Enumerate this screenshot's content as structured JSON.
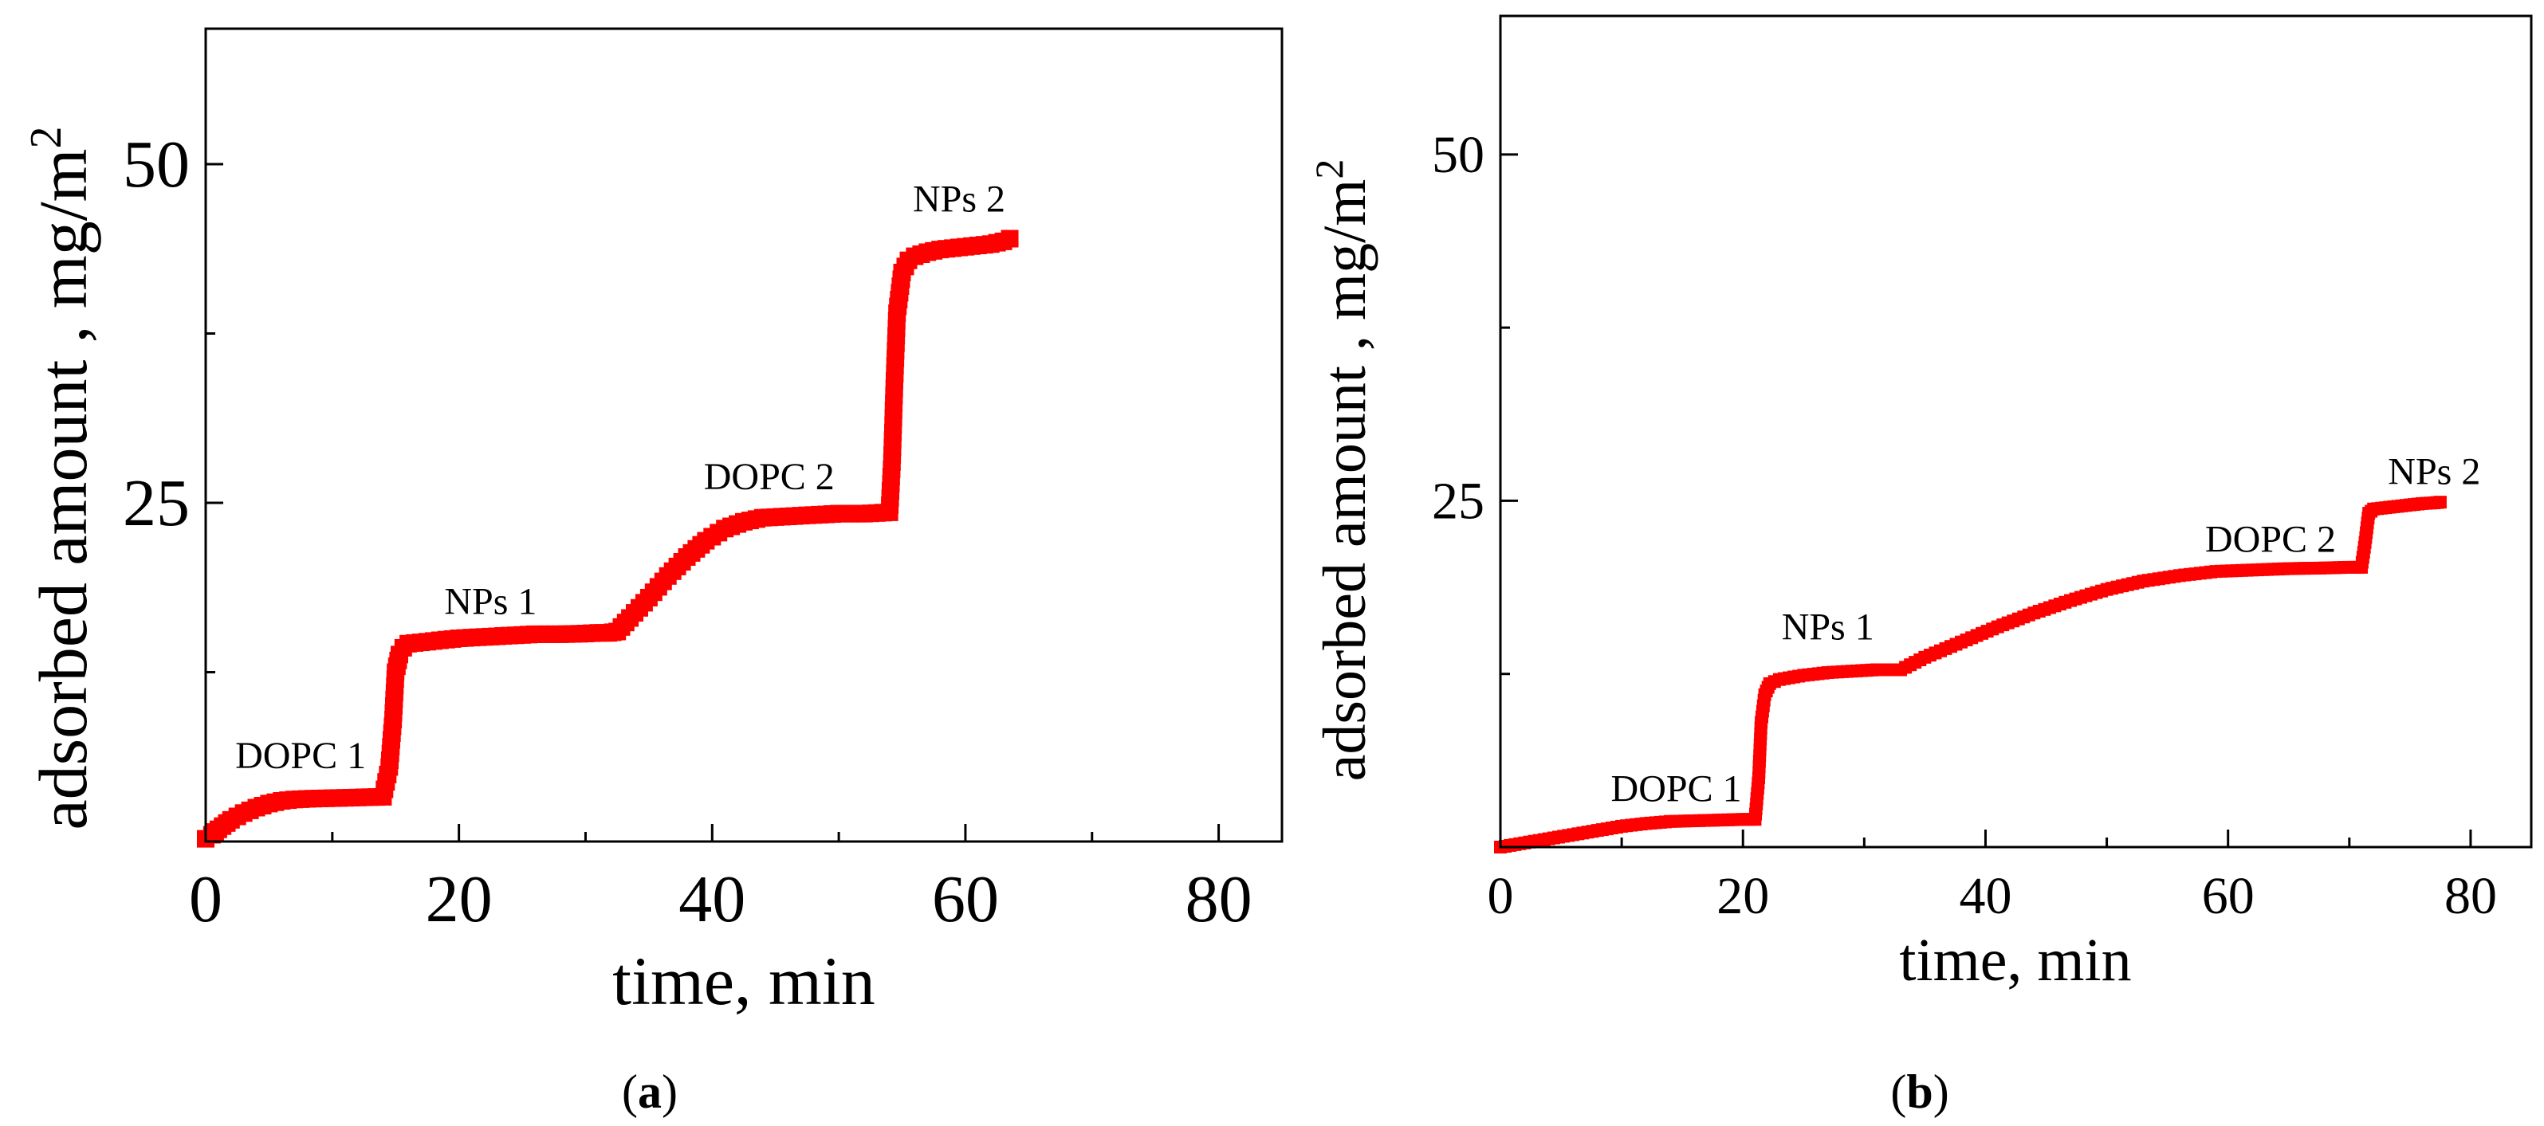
{
  "chart_data": [
    {
      "id": "a",
      "type": "scatter",
      "caption": {
        "open": "(",
        "letter": "a",
        "close": ")"
      },
      "xlabel": "time, min",
      "ylabel": "adsorbed amount , mg/m",
      "ylabel_superscript": "2",
      "xlim": [
        0,
        85
      ],
      "ylim": [
        0,
        60
      ],
      "x_ticks": [
        0,
        20,
        40,
        60,
        80
      ],
      "x_tick_labels": [
        "0",
        "20",
        "40",
        "60",
        "80"
      ],
      "x_minor_ticks": [
        10,
        30,
        50,
        70
      ],
      "y_ticks": [
        25,
        50
      ],
      "y_tick_labels": [
        "25",
        "50"
      ],
      "y_minor_ticks": [
        12.5,
        37.5
      ],
      "marker": "filled-square",
      "color": "#ff0000",
      "series": [
        {
          "name": "adsorbed amount",
          "x": [
            0,
            0.5,
            1,
            2,
            3,
            4,
            5,
            6,
            7,
            8,
            10,
            12,
            14,
            14.5,
            14.8,
            15,
            15.3,
            15.6,
            16,
            18,
            20,
            22,
            24,
            26,
            28,
            30,
            31,
            31.8,
            32.5,
            33.5,
            35,
            36.5,
            38,
            39.5,
            41,
            42.5,
            44,
            46,
            48,
            50,
            52,
            54,
            54.2,
            54.4,
            54.6,
            55,
            55.5,
            56,
            57,
            58,
            59,
            60,
            61,
            62,
            63,
            63.5
          ],
          "y": [
            0.2,
            0.5,
            0.9,
            1.6,
            2.1,
            2.5,
            2.8,
            3.0,
            3.1,
            3.15,
            3.2,
            3.25,
            3.3,
            5.5,
            9,
            12.5,
            13.8,
            14.3,
            14.6,
            14.8,
            15.0,
            15.1,
            15.2,
            15.3,
            15.3,
            15.35,
            15.4,
            15.4,
            15.5,
            16.5,
            18,
            19.6,
            21,
            22.2,
            23.1,
            23.6,
            23.9,
            24.0,
            24.1,
            24.2,
            24.2,
            24.3,
            28,
            34,
            39,
            42,
            42.9,
            43.2,
            43.5,
            43.7,
            43.8,
            43.9,
            44.0,
            44.1,
            44.3,
            44.5
          ]
        }
      ],
      "annotations": [
        {
          "text": "DOPC 1",
          "x": 7.5,
          "y": 5.4
        },
        {
          "text": "NPs 1",
          "x": 22.5,
          "y": 16.8
        },
        {
          "text": "DOPC 2",
          "x": 44.5,
          "y": 26.0
        },
        {
          "text": "NPs 2",
          "x": 59.5,
          "y": 46.5
        }
      ]
    },
    {
      "id": "b",
      "type": "scatter",
      "caption": {
        "open": "(",
        "letter": "b",
        "close": ")"
      },
      "xlabel": "time, min",
      "ylabel": "adsorbed amount , mg/m",
      "ylabel_superscript": "2",
      "xlim": [
        0,
        85
      ],
      "ylim": [
        0,
        60
      ],
      "x_ticks": [
        0,
        20,
        40,
        60,
        80
      ],
      "x_tick_labels": [
        "0",
        "20",
        "40",
        "60",
        "80"
      ],
      "x_minor_ticks": [
        10,
        30,
        50,
        70
      ],
      "y_ticks": [
        25,
        50
      ],
      "y_tick_labels": [
        "25",
        "50"
      ],
      "y_minor_ticks": [
        12.5,
        37.5
      ],
      "marker": "filled-square",
      "color": "#ff0000",
      "series": [
        {
          "name": "adsorbed amount",
          "x": [
            0,
            2,
            4,
            6,
            8,
            10,
            12,
            14,
            16,
            18,
            20,
            21,
            21.3,
            21.5,
            21.8,
            22.2,
            23,
            25,
            27,
            29,
            31,
            33,
            35,
            38,
            41,
            44,
            47,
            50,
            53,
            56,
            59,
            62,
            65,
            68,
            70,
            71,
            71.3,
            71.6,
            72,
            73,
            74,
            75,
            76,
            77,
            77.5
          ],
          "y": [
            0,
            0.3,
            0.6,
            0.9,
            1.2,
            1.5,
            1.7,
            1.85,
            1.9,
            1.95,
            2.0,
            2.0,
            5,
            9,
            11,
            11.8,
            12.1,
            12.4,
            12.6,
            12.7,
            12.8,
            12.8,
            13.7,
            14.8,
            15.9,
            16.9,
            17.8,
            18.6,
            19.2,
            19.6,
            19.9,
            20.0,
            20.1,
            20.15,
            20.2,
            20.2,
            22,
            24.1,
            24.4,
            24.5,
            24.6,
            24.7,
            24.8,
            24.85,
            24.9
          ]
        }
      ],
      "annotations": [
        {
          "text": "DOPC 1",
          "x": 14.5,
          "y": 3.3
        },
        {
          "text": "NPs 1",
          "x": 27,
          "y": 15.0
        },
        {
          "text": "DOPC 2",
          "x": 63.5,
          "y": 21.3
        },
        {
          "text": "NPs 2",
          "x": 77,
          "y": 26.2
        }
      ]
    }
  ]
}
